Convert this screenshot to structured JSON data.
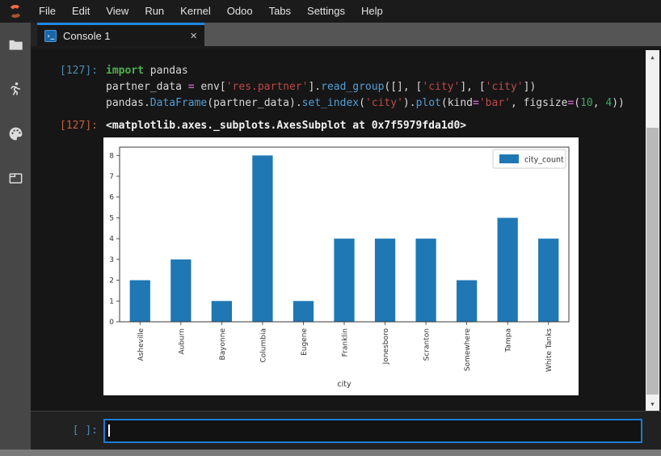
{
  "menubar": {
    "items": [
      "File",
      "Edit",
      "View",
      "Run",
      "Kernel",
      "Odoo",
      "Tabs",
      "Settings",
      "Help"
    ],
    "logo": "odoo-spinner-logo"
  },
  "sidebar": {
    "icons": [
      "folder-icon",
      "running-person-icon",
      "palette-icon",
      "tabs-icon"
    ]
  },
  "tab": {
    "label": "Console 1",
    "close_glyph": "×",
    "console_glyph": "›_"
  },
  "scrollbar": {
    "up_glyph": "▲",
    "down_glyph": "▼"
  },
  "console": {
    "cell": {
      "prompt": "[127]:",
      "lines": [
        [
          {
            "t": "import",
            "c": "kw"
          },
          {
            "t": " pandas",
            "c": "pl"
          }
        ],
        [
          {
            "t": "partner_data ",
            "c": "pl"
          },
          {
            "t": "=",
            "c": "op"
          },
          {
            "t": " env[",
            "c": "pl"
          },
          {
            "t": "'res.partner'",
            "c": "st"
          },
          {
            "t": "].",
            "c": "pl"
          },
          {
            "t": "read_group",
            "c": "fn"
          },
          {
            "t": "([], [",
            "c": "pl"
          },
          {
            "t": "'city'",
            "c": "st"
          },
          {
            "t": "], [",
            "c": "pl"
          },
          {
            "t": "'city'",
            "c": "st"
          },
          {
            "t": "])",
            "c": "pl"
          }
        ],
        [
          {
            "t": "pandas.",
            "c": "pl"
          },
          {
            "t": "DataFrame",
            "c": "fn"
          },
          {
            "t": "(partner_data).",
            "c": "pl"
          },
          {
            "t": "set_index",
            "c": "fn"
          },
          {
            "t": "(",
            "c": "pl"
          },
          {
            "t": "'city'",
            "c": "st"
          },
          {
            "t": ").",
            "c": "pl"
          },
          {
            "t": "plot",
            "c": "fn"
          },
          {
            "t": "(kind",
            "c": "pl"
          },
          {
            "t": "=",
            "c": "op"
          },
          {
            "t": "'bar'",
            "c": "st"
          },
          {
            "t": ", figsize",
            "c": "pl"
          },
          {
            "t": "=",
            "c": "op"
          },
          {
            "t": "(",
            "c": "pl"
          },
          {
            "t": "10",
            "c": "nu"
          },
          {
            "t": ", ",
            "c": "pl"
          },
          {
            "t": "4",
            "c": "nu"
          },
          {
            "t": "))",
            "c": "pl"
          }
        ]
      ]
    },
    "output": {
      "prompt": "[127]:",
      "text": "<matplotlib.axes._subplots.AxesSubplot at 0x7f5979fda1d0>"
    },
    "input": {
      "prompt": "[ ]:",
      "value": ""
    }
  },
  "colors": {
    "accent_blue": "#1e88e5",
    "bar_blue": "#1f77b4",
    "in_prompt": "#4a8cb3",
    "out_prompt": "#c2603e"
  },
  "chart_data": {
    "type": "bar",
    "title": "",
    "xlabel": "city",
    "ylabel": "",
    "categories": [
      "Asheville",
      "Auburn",
      "Bayonne",
      "Columbia",
      "Eugene",
      "Franklin",
      "Jonesboro",
      "Scranton",
      "Somewhere",
      "Tampa",
      "White Tanks"
    ],
    "series": [
      {
        "name": "city_count",
        "values": [
          2,
          3,
          1,
          8,
          1,
          4,
          4,
          4,
          2,
          5,
          4
        ]
      }
    ],
    "bar_color": "#1f77b4",
    "ylim": [
      0,
      8.4
    ],
    "yticks": [
      0,
      1,
      2,
      3,
      4,
      5,
      6,
      7,
      8
    ],
    "grid": false,
    "legend_position": "upper right",
    "x_tick_rotation": 90
  }
}
